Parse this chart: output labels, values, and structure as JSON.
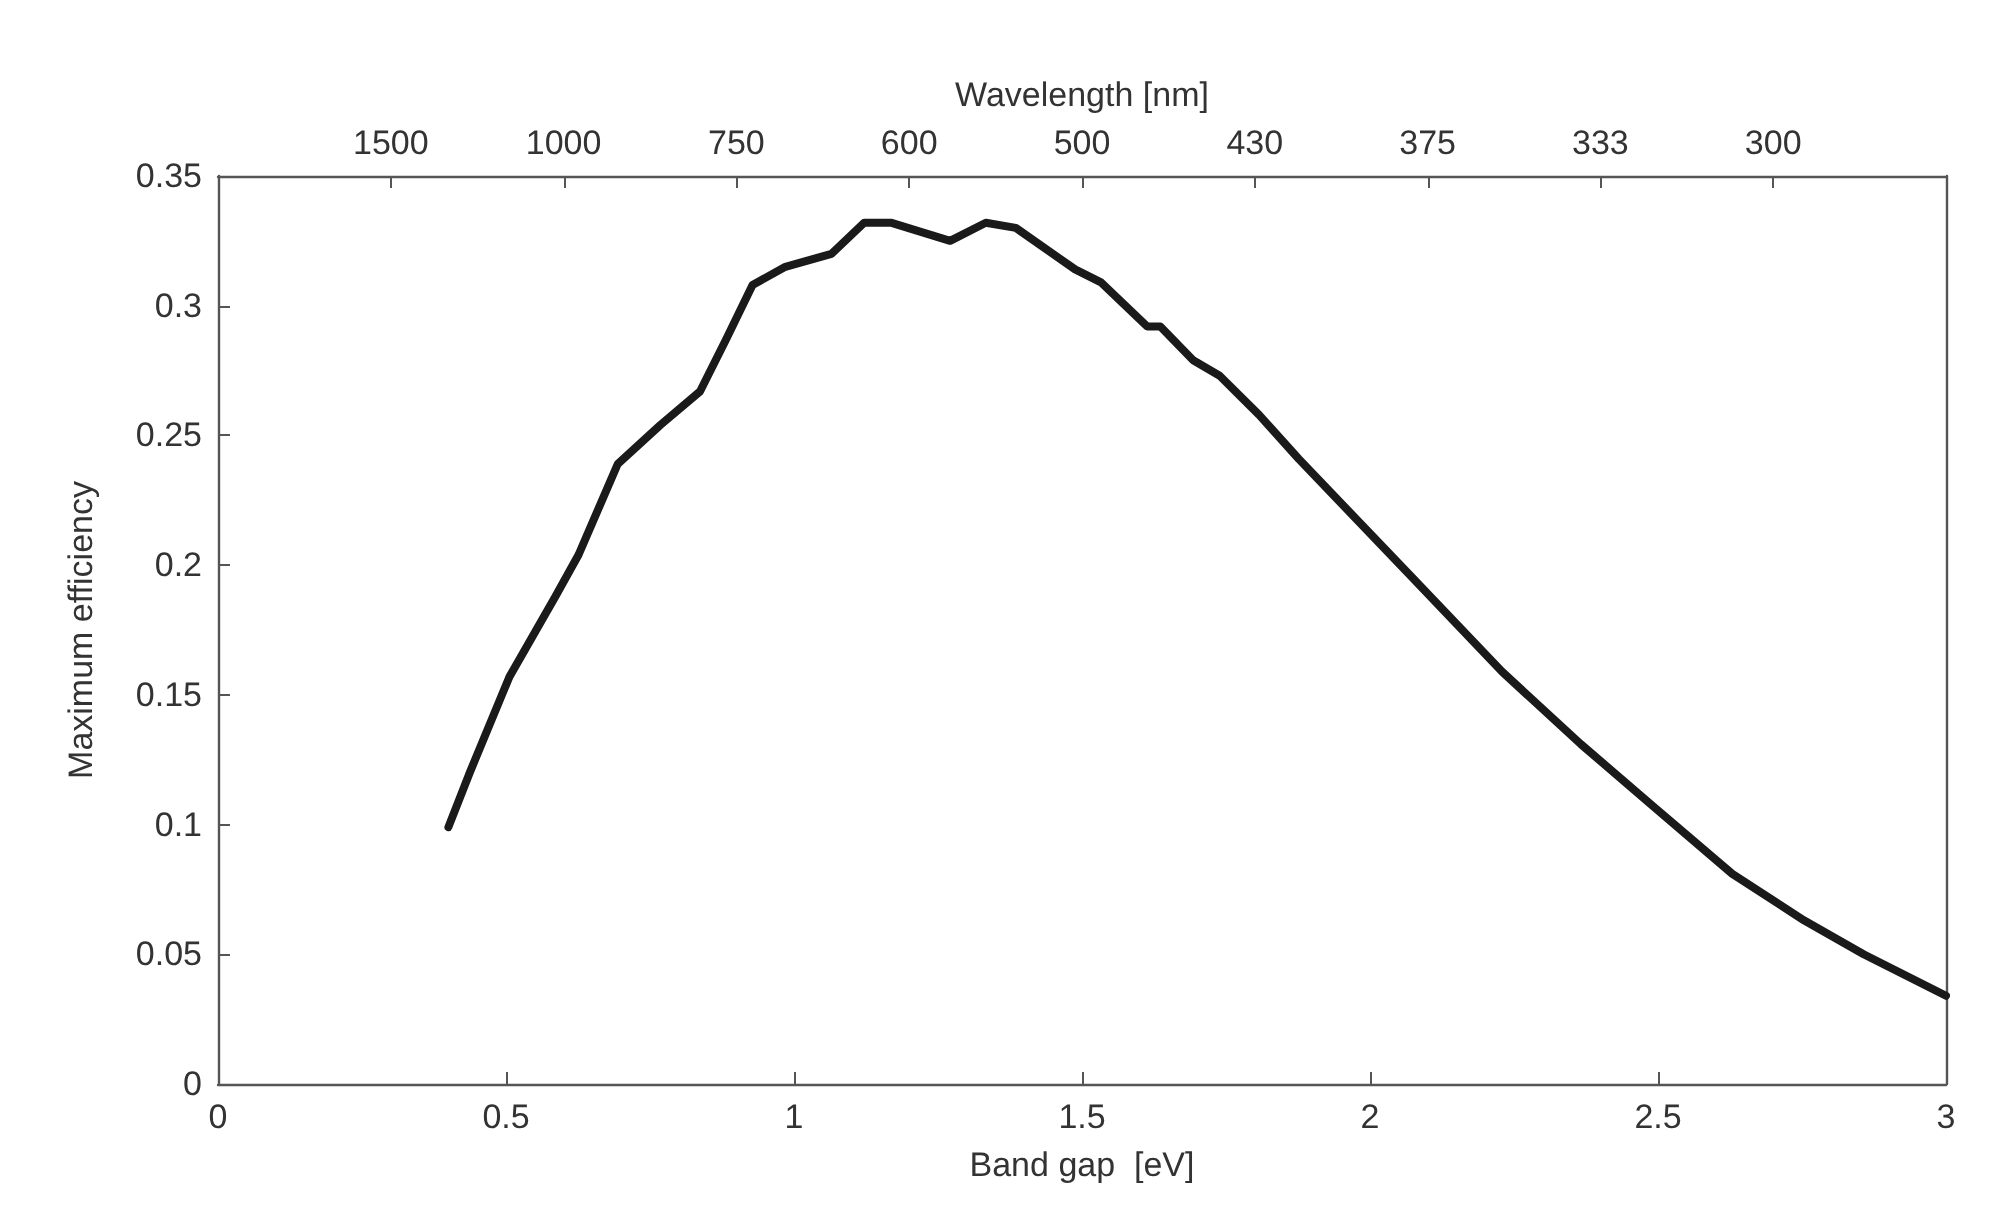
{
  "chart_data": {
    "type": "line",
    "xlabel": "Band gap  [eV]",
    "ylabel": "Maximum efficiency",
    "x2label": "Wavelength [nm]",
    "xlim": [
      0,
      3
    ],
    "xticks": [
      0,
      0.5,
      1,
      1.5,
      2,
      2.5,
      3
    ],
    "annotations": [
      "1500",
      "1000",
      "750",
      "600",
      "500",
      "430",
      "375",
      "333",
      "300"
    ],
    "ylim": [
      0,
      0.35
    ],
    "yticks": [
      0,
      0.05,
      0.1,
      0.15,
      0.2,
      0.25,
      0.3,
      0.35
    ],
    "grid": false,
    "marker": "none",
    "line_style": "solid",
    "series": [
      {
        "color": "#1a1a1a",
        "x": [
          0.4,
          0.437,
          0.506,
          0.586,
          0.626,
          0.694,
          0.768,
          0.837,
          0.882,
          0.928,
          0.985,
          1.065,
          1.122,
          1.168,
          1.271,
          1.333,
          1.385,
          1.488,
          1.533,
          1.613,
          1.636,
          1.693,
          1.739,
          1.807,
          1.876,
          2.07,
          2.229,
          2.366,
          2.492,
          2.629,
          2.754,
          2.857,
          3.0
        ],
        "values": [
          0.099,
          0.12,
          0.157,
          0.188,
          0.204,
          0.239,
          0.254,
          0.267,
          0.287,
          0.308,
          0.315,
          0.32,
          0.332,
          0.332,
          0.325,
          0.332,
          0.33,
          0.314,
          0.309,
          0.292,
          0.292,
          0.279,
          0.273,
          0.258,
          0.241,
          0.196,
          0.159,
          0.131,
          0.107,
          0.081,
          0.063,
          0.05,
          0.034
        ]
      }
    ]
  }
}
